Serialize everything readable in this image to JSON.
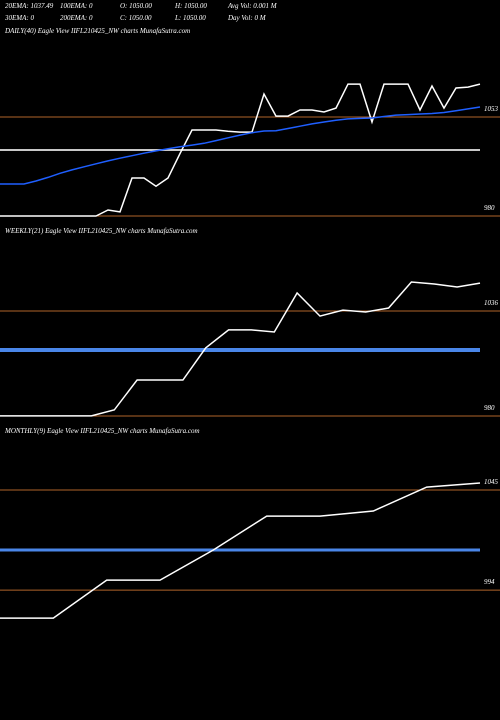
{
  "header": {
    "lines": [
      [
        "20EMA: 1037.49",
        "100EMA: 0",
        "O: 1050.00",
        "H: 1050.00",
        "Avg Vol: 0.001 M"
      ],
      [
        "30EMA: 0",
        "200EMA: 0",
        "C: 1050.00",
        "L: 1050.00",
        "Day Vol: 0 M"
      ]
    ]
  },
  "chart_data": [
    {
      "type": "line",
      "title": "DAILY(40) Eagle  View  IIFL210425_NW charts MunafaSutra.com",
      "ylim": [
        974.1,
        1109.8
      ],
      "yticks": [
        980,
        1053
      ],
      "grid": true,
      "grid_color": "#b0642a",
      "reference_lines": [
        {
          "value": 1028.7,
          "color": "#c8c8c8",
          "width": 2
        }
      ],
      "series": [
        {
          "color": "#ffffff",
          "values": [
            980,
            980,
            980,
            980,
            980,
            980,
            980,
            980,
            980,
            984.4,
            983,
            1008,
            1008,
            1002,
            1008,
            1026,
            1043.4,
            1043.4,
            1043.4,
            1042.5,
            1041.9,
            1041.9,
            1070,
            1053.7,
            1053.7,
            1058.2,
            1058.2,
            1056.7,
            1059.6,
            1077.3,
            1077.3,
            1049.3,
            1077.3,
            1077.3,
            1077.3,
            1058.2,
            1075.9,
            1059.6,
            1074.4,
            1075.1,
            1077.3
          ]
        },
        {
          "color": "#1f5fff",
          "values": [
            1003.6,
            1003.6,
            1003.6,
            1005.8,
            1008.5,
            1011.5,
            1014,
            1016.3,
            1018.5,
            1020.6,
            1022.6,
            1024.5,
            1026.3,
            1028,
            1029.6,
            1031,
            1032.3,
            1033.6,
            1035.6,
            1037.7,
            1039.7,
            1041.4,
            1042.7,
            1042.9,
            1044.5,
            1046.2,
            1047.9,
            1049.3,
            1050.6,
            1051.6,
            1052,
            1052.3,
            1053.4,
            1054.4,
            1054.8,
            1055.2,
            1055.6,
            1056.3,
            1057.6,
            1059,
            1060.4
          ]
        }
      ]
    },
    {
      "type": "line",
      "title": "WEEKLY(21) Eagle  View  IIFL210425_NW charts MunafaSutra.com",
      "ylim": [
        975.7,
        1073.9
      ],
      "yticks": [
        980,
        1036
      ],
      "grid": true,
      "grid_color": "#b0642a",
      "reference_lines": [
        {
          "value": 1015.2,
          "color": "#4a86e8",
          "width": 4
        }
      ],
      "series": [
        {
          "color": "#ffffff",
          "values": [
            980,
            980,
            980,
            980,
            980,
            983.2,
            999.2,
            999.2,
            999.2,
            1016.3,
            1025.9,
            1025.9,
            1024.8,
            1045.6,
            1033.3,
            1036.5,
            1035.5,
            1037.6,
            1051.5,
            1050.4,
            1048.8,
            1050.9
          ]
        }
      ]
    },
    {
      "type": "line",
      "title": "MONTHLY(9) Eagle  View  IIFL210425_NW charts MunafaSutra.com",
      "ylim": [
        976.7,
        1070.5
      ],
      "yticks": [
        994,
        1045
      ],
      "grid": true,
      "grid_color": "#b0642a",
      "reference_lines": [
        {
          "value": 1014.4,
          "color": "#4a86e8",
          "width": 3
        }
      ],
      "series": [
        {
          "color": "#ffffff",
          "values": [
            979.7,
            979.7,
            999.1,
            999.1,
            1014.4,
            1031.7,
            1031.7,
            1034.3,
            1046.5,
            1048.6
          ]
        }
      ]
    }
  ]
}
